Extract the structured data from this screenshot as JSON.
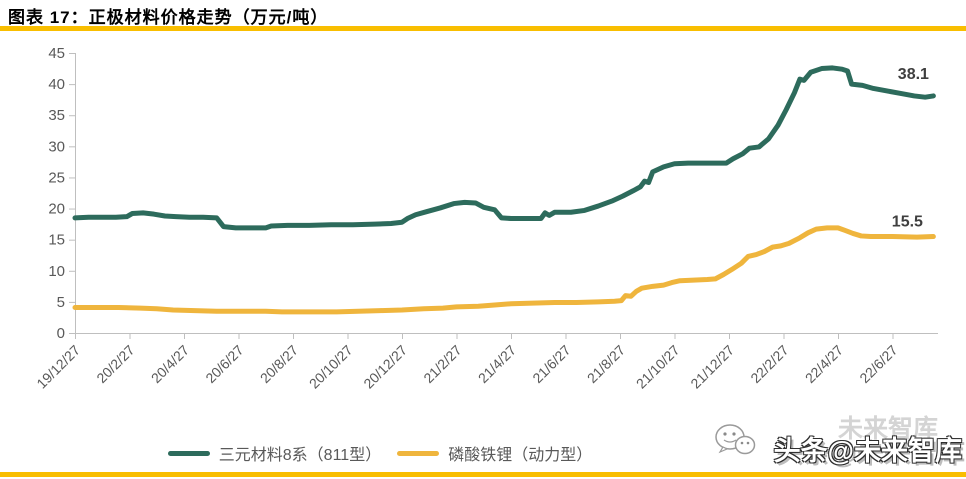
{
  "header": {
    "title": "图表 17：正极材料价格走势（万元/吨）"
  },
  "colors": {
    "accent_gold": "#F9BE00",
    "series_green": "#2D6B5C",
    "series_yellow": "#EFB53D",
    "axis_line": "#BFBFBF",
    "tick_label_gray": "#595959",
    "data_label_gray": "#3F3F3F"
  },
  "watermark": {
    "light_text": "未来智库",
    "main_text": "头条@未来智库",
    "icon": "chat-bubbles-icon"
  },
  "chart_data": {
    "type": "line",
    "title": "正极材料价格走势（万元/吨）",
    "ylabel": "万元/吨",
    "ylim": [
      0,
      45
    ],
    "y_tick_step": 5,
    "y_tick_labels": [
      "0",
      "5",
      "10",
      "15",
      "20",
      "25",
      "30",
      "35",
      "40",
      "45"
    ],
    "grid": false,
    "legend_position": "bottom",
    "months_per_tick": 2,
    "x_tick_labels": [
      "19/12/27",
      "20/2/27",
      "20/4/27",
      "20/6/27",
      "20/8/27",
      "20/10/27",
      "20/12/27",
      "21/2/27",
      "21/4/27",
      "21/6/27",
      "21/8/27",
      "21/10/27",
      "21/12/27",
      "22/2/27",
      "22/4/27",
      "22/6/27"
    ],
    "series": [
      {
        "name": "三元材料8系（811型）",
        "color": "#2D6B5C",
        "end_label": "38.1",
        "points": [
          [
            0,
            18.5
          ],
          [
            0.5,
            18.6
          ],
          [
            1.0,
            18.6
          ],
          [
            1.5,
            18.6
          ],
          [
            1.9,
            18.7
          ],
          [
            2.1,
            19.2
          ],
          [
            2.5,
            19.3
          ],
          [
            2.9,
            19.1
          ],
          [
            3.3,
            18.8
          ],
          [
            3.7,
            18.7
          ],
          [
            4.2,
            18.6
          ],
          [
            4.7,
            18.6
          ],
          [
            5.2,
            18.5
          ],
          [
            5.45,
            17.1
          ],
          [
            5.9,
            16.9
          ],
          [
            6.5,
            16.9
          ],
          [
            7.0,
            16.9
          ],
          [
            7.2,
            17.2
          ],
          [
            7.8,
            17.3
          ],
          [
            8.6,
            17.3
          ],
          [
            9.4,
            17.4
          ],
          [
            10.2,
            17.4
          ],
          [
            11.0,
            17.5
          ],
          [
            11.6,
            17.6
          ],
          [
            12.0,
            17.8
          ],
          [
            12.2,
            18.4
          ],
          [
            12.5,
            19.0
          ],
          [
            12.9,
            19.5
          ],
          [
            13.4,
            20.1
          ],
          [
            13.9,
            20.8
          ],
          [
            14.3,
            21.0
          ],
          [
            14.7,
            20.9
          ],
          [
            15.0,
            20.2
          ],
          [
            15.4,
            19.8
          ],
          [
            15.65,
            18.5
          ],
          [
            16.0,
            18.4
          ],
          [
            16.6,
            18.4
          ],
          [
            17.1,
            18.4
          ],
          [
            17.25,
            19.3
          ],
          [
            17.4,
            18.9
          ],
          [
            17.6,
            19.4
          ],
          [
            18.2,
            19.4
          ],
          [
            18.7,
            19.7
          ],
          [
            19.2,
            20.4
          ],
          [
            19.7,
            21.2
          ],
          [
            20.1,
            22.0
          ],
          [
            20.5,
            22.9
          ],
          [
            20.75,
            23.5
          ],
          [
            20.9,
            24.4
          ],
          [
            21.05,
            24.2
          ],
          [
            21.2,
            25.9
          ],
          [
            21.6,
            26.7
          ],
          [
            22.0,
            27.2
          ],
          [
            22.5,
            27.3
          ],
          [
            23.2,
            27.3
          ],
          [
            23.9,
            27.3
          ],
          [
            24.15,
            28.0
          ],
          [
            24.5,
            28.8
          ],
          [
            24.75,
            29.7
          ],
          [
            25.1,
            29.9
          ],
          [
            25.45,
            31.2
          ],
          [
            25.8,
            33.4
          ],
          [
            26.1,
            35.9
          ],
          [
            26.4,
            38.6
          ],
          [
            26.6,
            40.8
          ],
          [
            26.75,
            40.6
          ],
          [
            27.0,
            41.9
          ],
          [
            27.4,
            42.5
          ],
          [
            27.8,
            42.6
          ],
          [
            28.15,
            42.4
          ],
          [
            28.35,
            42.1
          ],
          [
            28.5,
            40.0
          ],
          [
            28.9,
            39.8
          ],
          [
            29.3,
            39.3
          ],
          [
            29.8,
            38.9
          ],
          [
            30.3,
            38.5
          ],
          [
            30.8,
            38.1
          ],
          [
            31.2,
            37.9
          ],
          [
            31.5,
            38.1
          ]
        ]
      },
      {
        "name": "磷酸铁锂（动力型）",
        "color": "#EFB53D",
        "end_label": "15.5",
        "points": [
          [
            0,
            4.1
          ],
          [
            0.8,
            4.1
          ],
          [
            1.6,
            4.1
          ],
          [
            2.4,
            4.0
          ],
          [
            3.0,
            3.9
          ],
          [
            3.6,
            3.7
          ],
          [
            4.4,
            3.6
          ],
          [
            5.2,
            3.5
          ],
          [
            6.0,
            3.5
          ],
          [
            7.0,
            3.5
          ],
          [
            7.6,
            3.4
          ],
          [
            8.6,
            3.4
          ],
          [
            9.6,
            3.4
          ],
          [
            10.4,
            3.5
          ],
          [
            11.2,
            3.6
          ],
          [
            12.0,
            3.7
          ],
          [
            12.8,
            3.9
          ],
          [
            13.5,
            4.0
          ],
          [
            14.0,
            4.2
          ],
          [
            14.8,
            4.3
          ],
          [
            15.4,
            4.5
          ],
          [
            16.0,
            4.7
          ],
          [
            16.8,
            4.8
          ],
          [
            17.6,
            4.9
          ],
          [
            18.4,
            4.9
          ],
          [
            19.2,
            5.0
          ],
          [
            19.8,
            5.1
          ],
          [
            20.05,
            5.2
          ],
          [
            20.2,
            6.0
          ],
          [
            20.4,
            5.9
          ],
          [
            20.6,
            6.7
          ],
          [
            20.8,
            7.2
          ],
          [
            21.2,
            7.5
          ],
          [
            21.6,
            7.7
          ],
          [
            21.9,
            8.1
          ],
          [
            22.2,
            8.4
          ],
          [
            22.7,
            8.5
          ],
          [
            23.2,
            8.6
          ],
          [
            23.5,
            8.7
          ],
          [
            23.8,
            9.4
          ],
          [
            24.1,
            10.2
          ],
          [
            24.45,
            11.2
          ],
          [
            24.7,
            12.3
          ],
          [
            25.0,
            12.6
          ],
          [
            25.3,
            13.1
          ],
          [
            25.6,
            13.8
          ],
          [
            25.9,
            14.0
          ],
          [
            26.2,
            14.4
          ],
          [
            26.6,
            15.3
          ],
          [
            26.9,
            16.1
          ],
          [
            27.2,
            16.7
          ],
          [
            27.6,
            16.9
          ],
          [
            28.0,
            16.9
          ],
          [
            28.25,
            16.5
          ],
          [
            28.55,
            16.0
          ],
          [
            28.85,
            15.6
          ],
          [
            29.2,
            15.5
          ],
          [
            30.0,
            15.5
          ],
          [
            30.9,
            15.4
          ],
          [
            31.5,
            15.5
          ]
        ]
      }
    ]
  }
}
